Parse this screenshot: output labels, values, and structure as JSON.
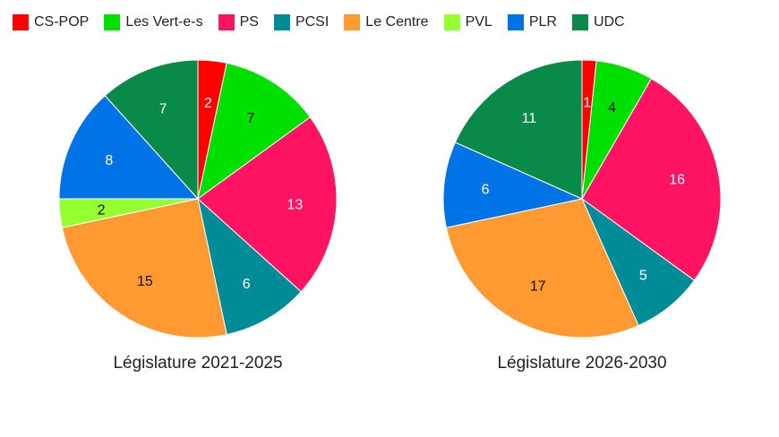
{
  "chart_data": [
    {
      "type": "pie",
      "title": "Législature 2021-2025",
      "categories": [
        "CS-POP",
        "Les Vert-e-s",
        "PS",
        "PCSI",
        "Le Centre",
        "PVL",
        "PLR",
        "UDC"
      ],
      "values": [
        2,
        7,
        13,
        6,
        15,
        2,
        8,
        7
      ]
    },
    {
      "type": "pie",
      "title": "Législature 2026-2030",
      "categories": [
        "CS-POP",
        "Les Vert-e-s",
        "PS",
        "PCSI",
        "Le Centre",
        "PVL",
        "PLR",
        "UDC"
      ],
      "values": [
        1,
        4,
        16,
        5,
        17,
        0,
        6,
        11
      ]
    }
  ],
  "legend": {
    "placement": "top-left",
    "items": [
      {
        "label": "CS-POP",
        "color": "#ff0000"
      },
      {
        "label": "Les Vert-e-s",
        "color": "#00e000"
      },
      {
        "label": "PS",
        "color": "#ff1464"
      },
      {
        "label": "PCSI",
        "color": "#008c96"
      },
      {
        "label": "Le Centre",
        "color": "#ff9a32"
      },
      {
        "label": "PVL",
        "color": "#96ff32"
      },
      {
        "label": "PLR",
        "color": "#0073e6"
      },
      {
        "label": "UDC",
        "color": "#0a8a48"
      }
    ]
  },
  "label_colors": {
    "dark_text": "#111111",
    "light_text": "#ffffff"
  }
}
